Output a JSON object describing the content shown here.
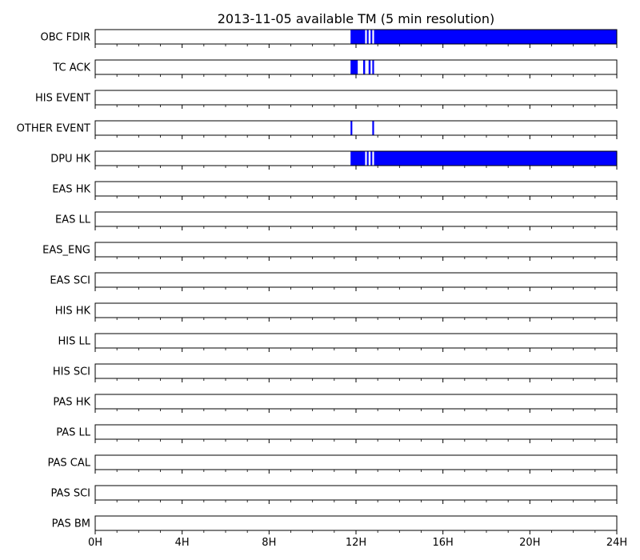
{
  "chart_data": {
    "type": "timeline",
    "title": "2013-11-05 available TM (5 min resolution)",
    "x_range_hours": [
      0,
      24
    ],
    "x_ticks": [
      {
        "hour": 0,
        "label": "0H"
      },
      {
        "hour": 4,
        "label": "4H"
      },
      {
        "hour": 8,
        "label": "8H"
      },
      {
        "hour": 12,
        "label": "12H"
      },
      {
        "hour": 16,
        "label": "16H"
      },
      {
        "hour": 20,
        "label": "20H"
      },
      {
        "hour": 24,
        "label": "24H"
      }
    ],
    "bar_color": "#0000ff",
    "rows": [
      {
        "label": "OBC FDIR",
        "intervals": [
          [
            11.75,
            12.42
          ],
          [
            12.5,
            12.58
          ],
          [
            12.67,
            12.75
          ],
          [
            12.83,
            24
          ]
        ]
      },
      {
        "label": "TC ACK",
        "intervals": [
          [
            11.75,
            12.08
          ],
          [
            12.33,
            12.42
          ],
          [
            12.58,
            12.67
          ],
          [
            12.75,
            12.83
          ]
        ]
      },
      {
        "label": "HIS EVENT",
        "intervals": []
      },
      {
        "label": "OTHER EVENT",
        "intervals": [
          [
            11.75,
            11.83
          ],
          [
            12.75,
            12.83
          ]
        ]
      },
      {
        "label": "DPU HK",
        "intervals": [
          [
            11.75,
            12.42
          ],
          [
            12.5,
            12.58
          ],
          [
            12.67,
            12.75
          ],
          [
            12.83,
            24
          ]
        ]
      },
      {
        "label": "EAS HK",
        "intervals": []
      },
      {
        "label": "EAS LL",
        "intervals": []
      },
      {
        "label": "EAS_ENG",
        "intervals": []
      },
      {
        "label": "EAS SCI",
        "intervals": []
      },
      {
        "label": "HIS HK",
        "intervals": []
      },
      {
        "label": "HIS LL",
        "intervals": []
      },
      {
        "label": "HIS SCI",
        "intervals": []
      },
      {
        "label": "PAS HK",
        "intervals": []
      },
      {
        "label": "PAS LL",
        "intervals": []
      },
      {
        "label": "PAS CAL",
        "intervals": []
      },
      {
        "label": "PAS SCI",
        "intervals": []
      },
      {
        "label": "PAS BM",
        "intervals": []
      }
    ]
  }
}
